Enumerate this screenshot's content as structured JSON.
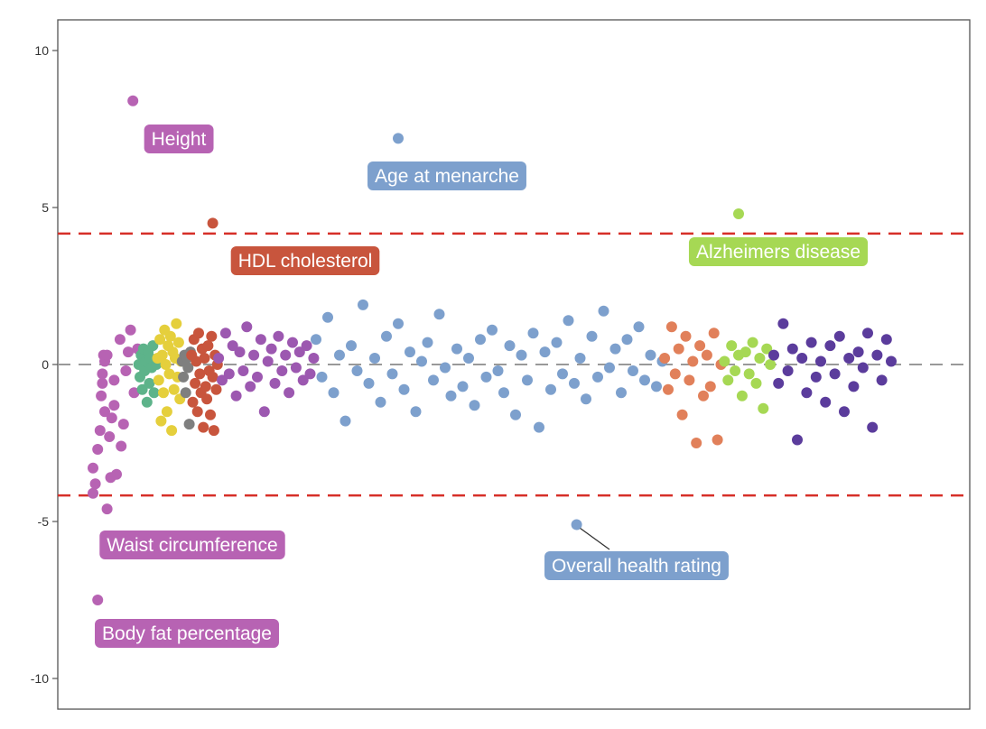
{
  "chart_data": {
    "type": "scatter",
    "title": "",
    "xlabel": "",
    "ylabel": "",
    "ylim": [
      -11,
      11
    ],
    "yticks": [
      -10,
      -5,
      0,
      5,
      10
    ],
    "grid": false,
    "reference_lines": [
      {
        "y": 0,
        "style": "dashed",
        "color": "#999999"
      },
      {
        "y": 4.17,
        "style": "dashed",
        "color": "#d62f28"
      },
      {
        "y": -4.17,
        "style": "dashed",
        "color": "#d62f28"
      }
    ],
    "series": [
      {
        "color": "#b763b3",
        "x": [
          50,
          50,
          52,
          54,
          56,
          57,
          58,
          58,
          59,
          60,
          60,
          62,
          64,
          65,
          66,
          68,
          68,
          70,
          73,
          74,
          76,
          78,
          80,
          82,
          85,
          88
        ],
        "y": [
          -3.3,
          -4.1,
          -3.8,
          -2.7,
          -2.1,
          -1.0,
          -0.6,
          -0.3,
          0.3,
          0.1,
          -1.5,
          0.3,
          -2.3,
          -3.6,
          -1.7,
          -0.5,
          -1.3,
          -3.5,
          0.8,
          -2.6,
          -1.9,
          -0.2,
          0.4,
          1.1,
          -0.9,
          0.5
        ]
      },
      {
        "color": "#5db38a",
        "x": [
          89,
          90,
          91,
          92,
          93,
          94,
          95,
          96,
          97,
          98,
          99,
          100,
          101,
          102,
          104
        ],
        "y": [
          0.0,
          -0.4,
          0.3,
          -0.8,
          0.5,
          -0.2,
          0.1,
          -1.2,
          0.4,
          -0.6,
          0.2,
          -0.1,
          0.6,
          -0.9,
          0.0
        ]
      },
      {
        "color": "#e5cf3c",
        "x": [
          105,
          106,
          107,
          108,
          109,
          110,
          111,
          112,
          113,
          114,
          115,
          116,
          117,
          118,
          119,
          120,
          121,
          122,
          123,
          124,
          125
        ],
        "y": [
          0.2,
          -0.5,
          0.8,
          -1.8,
          0.3,
          -0.9,
          1.1,
          0.0,
          -1.5,
          0.6,
          -0.3,
          0.9,
          -2.1,
          0.4,
          -0.8,
          0.2,
          1.3,
          -0.4,
          0.7,
          -1.1,
          0.1
        ]
      },
      {
        "color": "#7f7f7f",
        "x": [
          126,
          127,
          128,
          129,
          130,
          131,
          132,
          133
        ],
        "y": [
          0.1,
          -0.4,
          0.3,
          -0.9,
          0.2,
          -0.1,
          -1.9,
          0.4
        ]
      },
      {
        "color": "#c8553d",
        "x": [
          134,
          135,
          136,
          137,
          138,
          139,
          140,
          141,
          142,
          143,
          144,
          145,
          146,
          147,
          148,
          149,
          150,
          151,
          152,
          153,
          154,
          155,
          156
        ],
        "y": [
          0.3,
          -1.2,
          0.8,
          -0.6,
          0.1,
          -1.5,
          1.0,
          -0.3,
          -0.9,
          0.5,
          -2.0,
          0.2,
          -0.7,
          -1.1,
          0.6,
          -0.2,
          -1.6,
          0.9,
          -0.4,
          -2.1,
          0.3,
          -0.8,
          0.0
        ]
      },
      {
        "color": "#9c58b0",
        "x": [
          157,
          160,
          163,
          166,
          169,
          172,
          175,
          178,
          181,
          184,
          187,
          190,
          193,
          196,
          199,
          202,
          205,
          208,
          211,
          214,
          217,
          220,
          223,
          226,
          229,
          232,
          235,
          238
        ],
        "y": [
          0.2,
          -0.5,
          1.0,
          -0.3,
          0.6,
          -1.0,
          0.4,
          -0.2,
          1.2,
          -0.7,
          0.3,
          -0.4,
          0.8,
          -1.5,
          0.1,
          0.5,
          -0.6,
          0.9,
          -0.2,
          0.3,
          -0.9,
          0.7,
          -0.1,
          0.4,
          -0.5,
          0.6,
          -0.3,
          0.2
        ]
      },
      {
        "color": "#7da0cd",
        "x": [
          240,
          245,
          250,
          255,
          260,
          265,
          270,
          275,
          280,
          285,
          290,
          295,
          300,
          305,
          310,
          315,
          320,
          325,
          330,
          335,
          340,
          345,
          350,
          355,
          360,
          365,
          370,
          375,
          380,
          385,
          390,
          395,
          400,
          405,
          410,
          415,
          420,
          425,
          430,
          435,
          440,
          445,
          450,
          455,
          460,
          465,
          470,
          475,
          480,
          485,
          490,
          495,
          500,
          505,
          510,
          515,
          520,
          525,
          530,
          535
        ],
        "y": [
          0.8,
          -0.4,
          1.5,
          -0.9,
          0.3,
          -1.8,
          0.6,
          -0.2,
          1.9,
          -0.6,
          0.2,
          -1.2,
          0.9,
          -0.3,
          1.3,
          -0.8,
          0.4,
          -1.5,
          0.1,
          0.7,
          -0.5,
          1.6,
          -0.1,
          -1.0,
          0.5,
          -0.7,
          0.2,
          -1.3,
          0.8,
          -0.4,
          1.1,
          -0.2,
          -0.9,
          0.6,
          -1.6,
          0.3,
          -0.5,
          1.0,
          -2.0,
          0.4,
          -0.8,
          0.7,
          -0.3,
          1.4,
          -0.6,
          0.2,
          -1.1,
          0.9,
          -0.4,
          1.7,
          -0.1,
          0.5,
          -0.9,
          0.8,
          -0.2,
          1.2,
          -0.5,
          0.3,
          -0.7,
          0.1
        ]
      },
      {
        "color": "#e1805a",
        "x": [
          537,
          540,
          543,
          546,
          549,
          552,
          555,
          558,
          561,
          564,
          567,
          570,
          573,
          576,
          579,
          582,
          585
        ],
        "y": [
          0.2,
          -0.8,
          1.2,
          -0.3,
          0.5,
          -1.6,
          0.9,
          -0.5,
          0.1,
          -2.5,
          0.6,
          -1.0,
          0.3,
          -0.7,
          1.0,
          -2.4,
          0.0
        ]
      },
      {
        "color": "#a6d854",
        "x": [
          588,
          591,
          594,
          597,
          600,
          603,
          606,
          609,
          612,
          615,
          618,
          621,
          624,
          627
        ],
        "y": [
          0.1,
          -0.5,
          0.6,
          -0.2,
          0.3,
          -1.0,
          0.4,
          -0.3,
          0.7,
          -0.6,
          0.2,
          -1.4,
          0.5,
          0.0
        ]
      },
      {
        "color": "#5b3c9c",
        "x": [
          630,
          634,
          638,
          642,
          646,
          650,
          654,
          658,
          662,
          666,
          670,
          674,
          678,
          682,
          686,
          690,
          694,
          698,
          702,
          706,
          710,
          714,
          718,
          722,
          726,
          730
        ],
        "y": [
          0.3,
          -0.6,
          1.3,
          -0.2,
          0.5,
          -2.4,
          0.2,
          -0.9,
          0.7,
          -0.4,
          0.1,
          -1.2,
          0.6,
          -0.3,
          0.9,
          -1.5,
          0.2,
          -0.7,
          0.4,
          -0.1,
          1.0,
          -2.0,
          0.3,
          -0.5,
          0.8,
          0.1
        ]
      }
    ],
    "annotations": [
      {
        "text": "Height",
        "x": 84,
        "y": 8.4,
        "color": "#b763b3"
      },
      {
        "text": "Age at menarche",
        "x": 310,
        "y": 7.2,
        "color": "#7da0cd"
      },
      {
        "text": "HDL cholesterol",
        "x": 152,
        "y": 4.5,
        "color": "#c8553d"
      },
      {
        "text": "Alzheimers disease",
        "x": 600,
        "y": 4.8,
        "color": "#a6d854"
      },
      {
        "text": "Waist circumference",
        "x": 62,
        "y": -4.6,
        "color": "#b763b3"
      },
      {
        "text": "Body fat percentage",
        "x": 54,
        "y": -7.5,
        "color": "#b763b3"
      },
      {
        "text": "Overall health rating",
        "x": 462,
        "y": -5.1,
        "color": "#7da0cd"
      }
    ]
  }
}
